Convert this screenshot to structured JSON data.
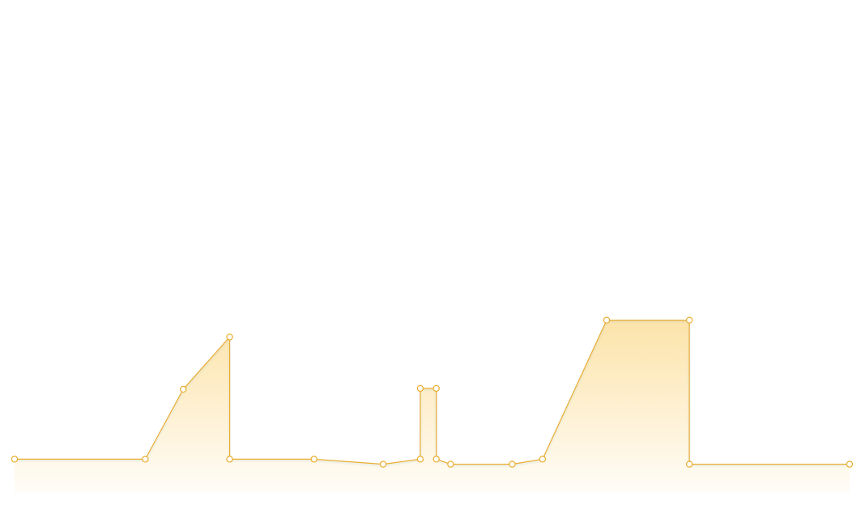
{
  "chart_data": {
    "type": "area",
    "title": "",
    "xlabel": "",
    "ylabel": "",
    "grid": false,
    "legend": "none",
    "x": [
      0,
      155,
      200,
      255,
      255,
      355,
      437,
      481,
      481,
      500,
      500,
      517,
      590,
      626,
      702,
      800,
      800,
      990
    ],
    "series": [
      {
        "values": [
          0,
          0,
          83,
          145,
          0,
          0,
          -6,
          0,
          84,
          84,
          0,
          -6,
          -6,
          0,
          165,
          165,
          -6,
          -6
        ]
      }
    ],
    "xlim": [
      0,
      990
    ],
    "ylim": [
      -40,
      545
    ],
    "colors": {
      "line": "#EBAD2E",
      "fill": "#FCE3A9",
      "fill_bottom": "#FFFDF8",
      "shadow": "#9FC7CC",
      "marker_fill": "#FFFFFF"
    }
  }
}
